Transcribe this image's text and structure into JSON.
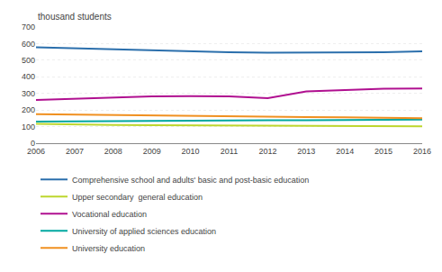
{
  "chart_data": {
    "type": "line",
    "y_label": "thousand students",
    "x": [
      2006,
      2007,
      2008,
      2009,
      2010,
      2011,
      2012,
      2013,
      2014,
      2015,
      2016
    ],
    "series": [
      {
        "name": "Comprehensive school and adults' basic and post-basic education",
        "color": "#2B6FAC",
        "values": [
          578,
          572,
          563,
          557,
          551,
          548,
          545,
          545,
          545,
          548,
          554
        ]
      },
      {
        "name": "Upper secondary  general education",
        "color": "#BDD62E",
        "values": [
          116,
          112,
          110,
          109,
          108,
          107,
          106,
          105,
          104,
          103,
          102
        ]
      },
      {
        "name": "Vocational education",
        "color": "#B01090",
        "values": [
          260,
          267,
          275,
          282,
          283,
          282,
          271,
          312,
          320,
          328,
          330
        ]
      },
      {
        "name": "University of applied sciences education",
        "color": "#00A8A0",
        "values": [
          130,
          132,
          133,
          134,
          136,
          137,
          138,
          139,
          140,
          141,
          142
        ]
      },
      {
        "name": "University education",
        "color": "#F09020",
        "values": [
          175,
          172,
          168,
          165,
          162,
          160,
          158,
          157,
          156,
          154,
          150
        ]
      }
    ],
    "xlim": [
      2006,
      2016
    ],
    "xticks": [
      2006,
      2007,
      2008,
      2009,
      2010,
      2011,
      2012,
      2013,
      2014,
      2015,
      2016
    ],
    "ylim": [
      0,
      700
    ],
    "yticks": [
      0,
      100,
      200,
      300,
      400,
      500,
      600,
      700
    ],
    "grid": true,
    "legend": "bottom"
  }
}
